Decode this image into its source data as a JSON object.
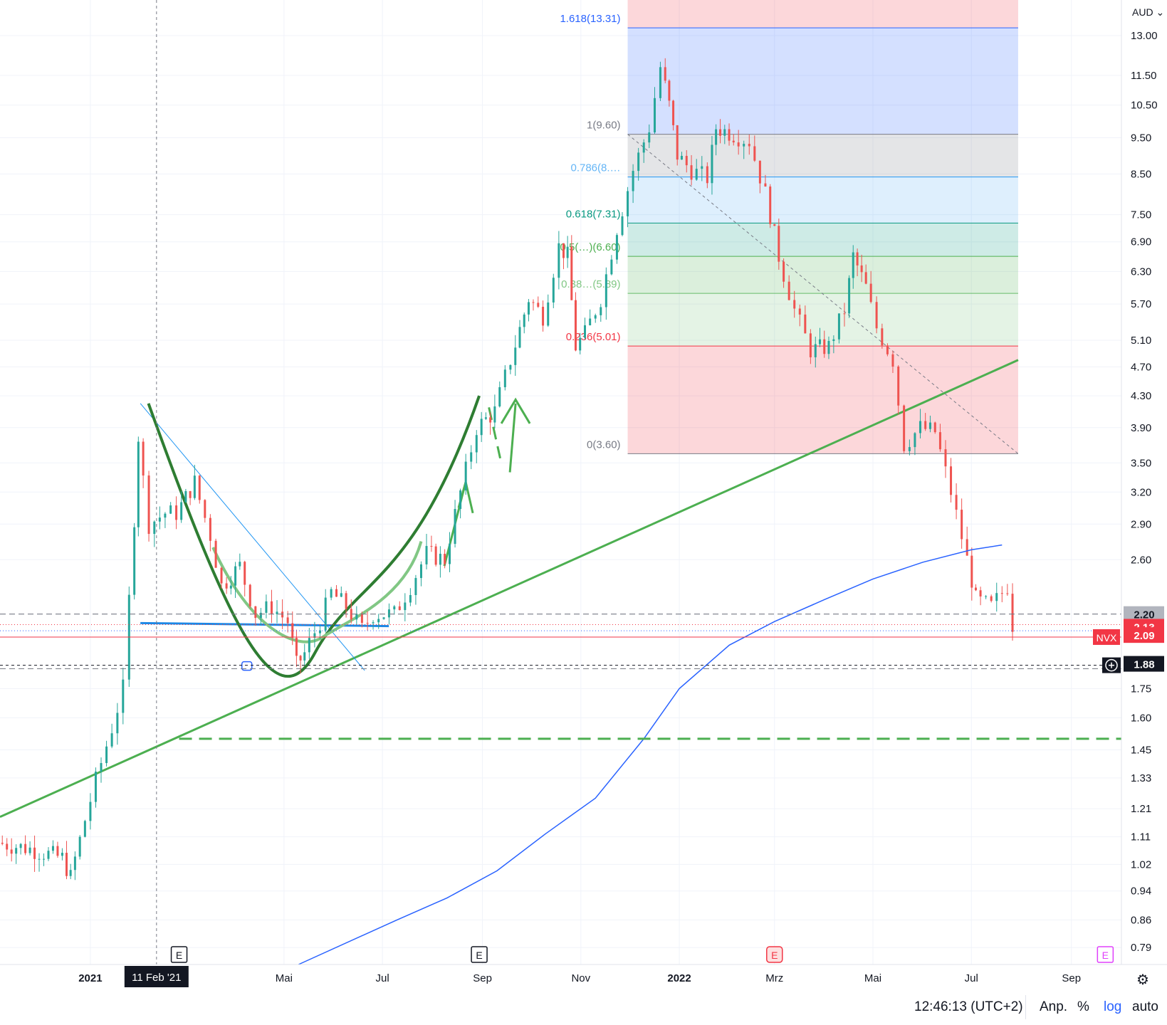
{
  "currency": {
    "label": "AUD"
  },
  "symbol": "NVX",
  "toolbar": {
    "time": "12:46:13 (UTC+2)",
    "adjust": "Anp.",
    "percent": "%",
    "log": "log",
    "auto": "auto"
  },
  "crosshair": {
    "date_label": "11 Feb '21",
    "price_label": "1.88"
  },
  "price_badges": {
    "level_line": "2.20",
    "last_price": "2.13",
    "bid_price": "2.09"
  },
  "fib_labels": [
    "1.618(13.31)",
    "1(9.60)",
    "0.786(8.…",
    "0.618(7.31)",
    "0.5(…)(6.60)",
    "0.38…(5.89)",
    "0.236(5.01)",
    "0(3.60)"
  ],
  "x_axis_labels": [
    "2021",
    "Mai",
    "Jul",
    "Sep",
    "Nov",
    "2022",
    "Mrz",
    "Mai",
    "Jul",
    "Sep"
  ],
  "event_markers": [
    "E",
    "E",
    "E",
    "E"
  ],
  "colors": {
    "up": "#26a69a",
    "down": "#ef5350",
    "trend": "#4caf50",
    "ma": "#2962ff"
  },
  "chart_data": {
    "type": "candlestick",
    "y_scale": "log",
    "ylim": [
      0.75,
      14.5
    ],
    "y_ticks": [
      0.79,
      0.86,
      0.94,
      1.02,
      1.11,
      1.21,
      1.33,
      1.45,
      1.6,
      1.75,
      2.6,
      2.9,
      3.2,
      3.5,
      3.9,
      4.3,
      4.7,
      5.1,
      5.7,
      6.3,
      6.9,
      7.5,
      8.5,
      9.5,
      10.5,
      11.5,
      13.0
    ],
    "y_tick_labels": [
      "0.79",
      "0.86",
      "0.94",
      "1.02",
      "1.11",
      "1.21",
      "1.33",
      "1.45",
      "1.60",
      "1.75",
      "2.60",
      "2.90",
      "3.20",
      "3.50",
      "3.90",
      "4.30",
      "4.70",
      "5.10",
      "5.70",
      "6.30",
      "6.90",
      "7.50",
      "8.50",
      "9.50",
      "10.50",
      "11.50",
      "13.00"
    ],
    "x_range": [
      "2020-11-06",
      "2022-10-02"
    ],
    "x_ticks": [
      "2021-01-01",
      "2021-05-01",
      "2021-07-01",
      "2021-09-01",
      "2021-11-01",
      "2022-01-01",
      "2022-03-01",
      "2022-05-01",
      "2022-07-01",
      "2022-09-01"
    ],
    "series": [
      {
        "name": "NVX",
        "type": "close-path",
        "points": [
          [
            "2020-11-06",
            1.09
          ],
          [
            "2020-11-26",
            1.07
          ],
          [
            "2020-12-16",
            1.04
          ],
          [
            "2020-12-21",
            0.98
          ],
          [
            "2020-12-27",
            1.1
          ],
          [
            "2021-01-06",
            1.32
          ],
          [
            "2021-01-16",
            1.55
          ],
          [
            "2021-01-23",
            1.75
          ],
          [
            "2021-01-27",
            2.3
          ],
          [
            "2021-02-01",
            3.8
          ],
          [
            "2021-02-08",
            2.9
          ],
          [
            "2021-02-18",
            3.0
          ],
          [
            "2021-02-25",
            3.0
          ],
          [
            "2021-03-08",
            3.3
          ],
          [
            "2021-03-18",
            2.8
          ],
          [
            "2021-03-25",
            2.4
          ],
          [
            "2021-04-05",
            2.55
          ],
          [
            "2021-04-15",
            2.2
          ],
          [
            "2021-04-25",
            2.25
          ],
          [
            "2021-05-05",
            2.15
          ],
          [
            "2021-05-10",
            1.88
          ],
          [
            "2021-05-15",
            1.95
          ],
          [
            "2021-05-25",
            2.15
          ],
          [
            "2021-06-01",
            2.35
          ],
          [
            "2021-06-10",
            2.25
          ],
          [
            "2021-06-20",
            2.1
          ],
          [
            "2021-06-27",
            2.2
          ],
          [
            "2021-07-10",
            2.2
          ],
          [
            "2021-07-20",
            2.4
          ],
          [
            "2021-07-30",
            2.65
          ],
          [
            "2021-08-10",
            2.6
          ],
          [
            "2021-08-20",
            3.2
          ],
          [
            "2021-08-30",
            3.9
          ],
          [
            "2021-09-10",
            4.1
          ],
          [
            "2021-09-20",
            4.8
          ],
          [
            "2021-10-01",
            5.8
          ],
          [
            "2021-10-10",
            5.5
          ],
          [
            "2021-10-20",
            6.8
          ],
          [
            "2021-10-25",
            6.6
          ],
          [
            "2021-10-30",
            5.0
          ],
          [
            "2021-11-05",
            5.2
          ],
          [
            "2021-11-15",
            5.8
          ],
          [
            "2021-11-25",
            7.2
          ],
          [
            "2021-12-05",
            8.6
          ],
          [
            "2021-12-15",
            9.8
          ],
          [
            "2021-12-22",
            11.8
          ],
          [
            "2021-12-27",
            10.5
          ],
          [
            "2022-01-01",
            9.0
          ],
          [
            "2022-01-10",
            8.6
          ],
          [
            "2022-01-20",
            8.4
          ],
          [
            "2022-01-25",
            9.8
          ],
          [
            "2022-02-05",
            9.6
          ],
          [
            "2022-02-15",
            9.4
          ],
          [
            "2022-02-25",
            8.0
          ],
          [
            "2022-03-05",
            6.6
          ],
          [
            "2022-03-15",
            5.6
          ],
          [
            "2022-03-25",
            4.95
          ],
          [
            "2022-04-05",
            5.0
          ],
          [
            "2022-04-15",
            5.6
          ],
          [
            "2022-04-20",
            6.6
          ],
          [
            "2022-04-28",
            6.0
          ],
          [
            "2022-05-05",
            5.3
          ],
          [
            "2022-05-15",
            4.8
          ],
          [
            "2022-05-22",
            3.7
          ],
          [
            "2022-06-01",
            3.9
          ],
          [
            "2022-06-10",
            3.85
          ],
          [
            "2022-06-20",
            3.2
          ],
          [
            "2022-06-30",
            2.6
          ],
          [
            "2022-07-05",
            2.3
          ],
          [
            "2022-07-15",
            2.25
          ],
          [
            "2022-07-25",
            2.4
          ],
          [
            "2022-07-28",
            2.13
          ]
        ]
      },
      {
        "name": "MA",
        "type": "line",
        "points": [
          [
            "2021-05-10",
            0.75
          ],
          [
            "2021-07-10",
            0.86
          ],
          [
            "2021-08-10",
            0.92
          ],
          [
            "2021-09-10",
            1.0
          ],
          [
            "2021-10-10",
            1.12
          ],
          [
            "2021-11-10",
            1.25
          ],
          [
            "2021-12-10",
            1.5
          ],
          [
            "2022-01-01",
            1.75
          ],
          [
            "2022-02-01",
            2.0
          ],
          [
            "2022-03-01",
            2.15
          ],
          [
            "2022-04-01",
            2.3
          ],
          [
            "2022-05-01",
            2.45
          ],
          [
            "2022-06-01",
            2.58
          ],
          [
            "2022-07-01",
            2.68
          ],
          [
            "2022-07-20",
            2.72
          ]
        ]
      }
    ],
    "fibonacci": [
      {
        "level": "1.618",
        "price": 13.31
      },
      {
        "level": "1",
        "price": 9.6
      },
      {
        "level": "0.786",
        "price": 8.42
      },
      {
        "level": "0.618",
        "price": 7.31
      },
      {
        "level": "0.5",
        "price": 6.6
      },
      {
        "level": "0.382",
        "price": 5.89
      },
      {
        "level": "0.236",
        "price": 5.01
      },
      {
        "level": "0",
        "price": 3.6
      }
    ],
    "horizontal_levels": [
      2.2,
      1.88,
      1.5
    ],
    "current_price": 2.13
  }
}
